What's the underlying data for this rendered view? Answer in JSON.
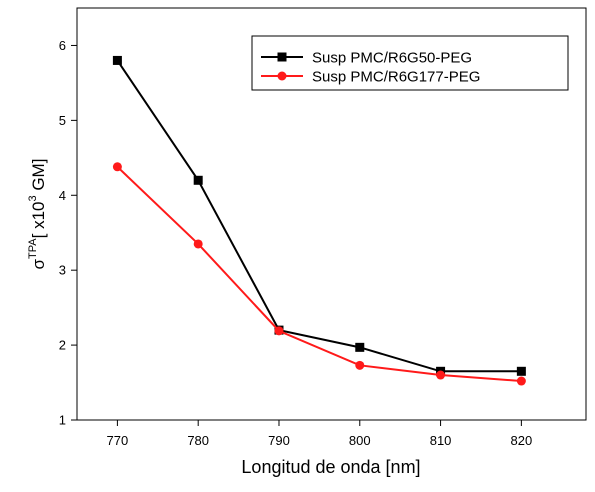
{
  "chart_data": {
    "type": "line",
    "x": [
      770,
      780,
      790,
      800,
      810,
      820
    ],
    "xlabel": "Longitud de onda [nm]",
    "ylabel": {
      "symbol": "σ",
      "superscript": "TPA",
      "bracket_open": "[ x10",
      "exponent": "3",
      "unit": " GM]"
    },
    "xlim": [
      765,
      828
    ],
    "ylim": [
      1,
      6.5
    ],
    "xticks": [
      770,
      780,
      790,
      800,
      810,
      820
    ],
    "yticks": [
      1,
      2,
      3,
      4,
      5,
      6
    ],
    "grid": false,
    "legend_position": "top-right",
    "series": [
      {
        "name": "Susp PMC/R6G50-PEG",
        "color": "#000000",
        "marker": "square",
        "values": [
          5.8,
          4.2,
          2.2,
          1.97,
          1.65,
          1.65
        ]
      },
      {
        "name": "Susp PMC/R6G177-PEG",
        "color": "#ff1a1a",
        "marker": "circle",
        "values": [
          4.38,
          3.35,
          2.19,
          1.73,
          1.6,
          1.52
        ]
      }
    ]
  }
}
